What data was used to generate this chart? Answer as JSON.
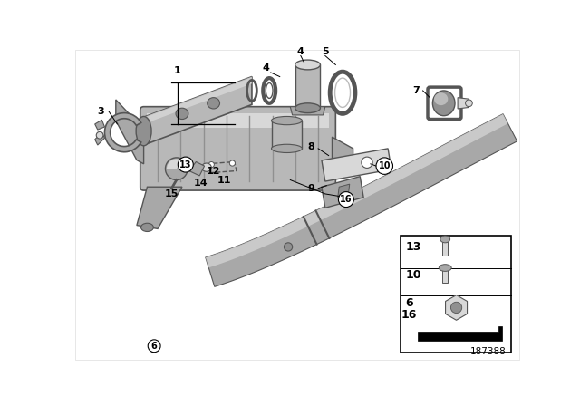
{
  "bg_color": "#ffffff",
  "diagram_number": "187388",
  "gray1": "#c0c0c0",
  "gray2": "#a8a8a8",
  "gray3": "#d8d8d8",
  "gray4": "#909090",
  "gray5": "#b8b8b8",
  "outline": "#555555",
  "black": "#000000"
}
